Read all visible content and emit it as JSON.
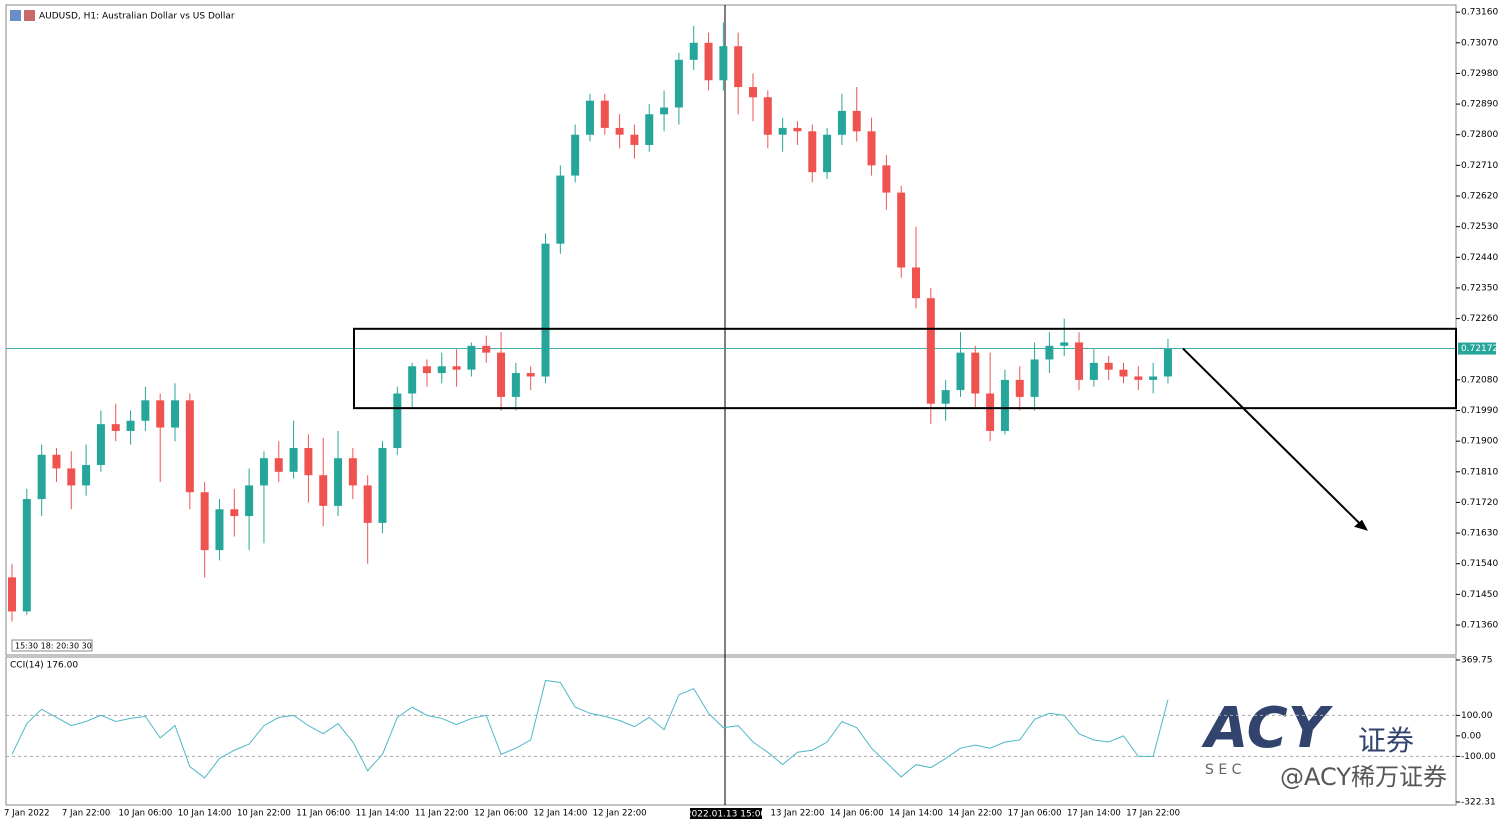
{
  "chart_data": {
    "type": "candlestick",
    "title": "AUDUSD, H1:  Australian Dollar vs US Dollar",
    "categories": [
      null,
      "7 Jan 2022",
      null,
      null,
      null,
      "7 Jan 22:00",
      null,
      null,
      null,
      "10 Jan 06:00",
      null,
      null,
      null,
      "10 Jan 14:00",
      null,
      null,
      null,
      "10 Jan 22:00",
      null,
      null,
      null,
      "11 Jan 06:00",
      null,
      null,
      null,
      "11 Jan 14:00",
      null,
      null,
      null,
      "11 Jan 22:00",
      null,
      null,
      null,
      "12 Jan 06:00",
      null,
      null,
      null,
      "12 Jan 14:00",
      null,
      null,
      null,
      "12 Jan 22:00",
      null,
      null,
      null,
      null,
      null,
      null,
      null,
      null,
      null,
      null,
      null,
      "13 Jan 22:00",
      null,
      null,
      null,
      "14 Jan 06:00",
      null,
      null,
      null,
      "14 Jan 14:00",
      null,
      null,
      null,
      "14 Jan 22:00",
      null,
      null,
      null,
      "17 Jan 06:00",
      null,
      null,
      null,
      "17 Jan 14:00",
      null,
      null,
      null,
      "17 Jan 22:00",
      null
    ],
    "open": [
      0.715,
      0.714,
      0.7173,
      0.7186,
      0.7182,
      0.7177,
      0.7183,
      0.7195,
      0.7193,
      0.7196,
      0.7202,
      0.7194,
      0.7202,
      0.7175,
      0.7158,
      0.717,
      0.7168,
      0.7177,
      0.7185,
      0.7181,
      0.7188,
      0.718,
      0.7171,
      0.7185,
      0.7177,
      0.7166,
      0.7188,
      0.7204,
      0.7212,
      0.721,
      0.7212,
      0.7211,
      0.7218,
      0.7216,
      0.7203,
      0.721,
      0.7209,
      0.7248,
      0.7268,
      0.728,
      0.729,
      0.7282,
      0.728,
      0.7277,
      0.7286,
      0.7288,
      0.7302,
      0.7307,
      0.7296,
      0.7306,
      0.7294,
      0.7291,
      0.728,
      0.7282,
      0.7281,
      0.7269,
      0.728,
      0.7287,
      0.7281,
      0.7271,
      0.7263,
      0.7241,
      0.7232,
      0.7201,
      0.7205,
      0.7216,
      0.7204,
      0.7193,
      0.7208,
      0.7203,
      0.7214,
      0.7218,
      0.7219,
      0.7208,
      0.7213,
      0.7211,
      0.7209,
      0.7208,
      0.7209
    ],
    "high": [
      0.7154,
      0.7176,
      0.7189,
      0.7188,
      0.7187,
      0.7189,
      0.7199,
      0.7201,
      0.7199,
      0.7206,
      0.7204,
      0.7207,
      0.7204,
      0.7178,
      0.7173,
      0.7176,
      0.7182,
      0.7187,
      0.719,
      0.7196,
      0.7192,
      0.7191,
      0.7193,
      0.7188,
      0.718,
      0.719,
      0.7206,
      0.7213,
      0.7214,
      0.7216,
      0.7217,
      0.7219,
      0.7221,
      0.7222,
      0.7213,
      0.7212,
      0.7251,
      0.7271,
      0.7283,
      0.7292,
      0.7292,
      0.7286,
      0.7283,
      0.7289,
      0.7293,
      0.7304,
      0.7312,
      0.731,
      0.7313,
      0.731,
      0.7298,
      0.7293,
      0.7285,
      0.7284,
      0.7283,
      0.7282,
      0.7292,
      0.7294,
      0.7285,
      0.7274,
      0.7265,
      0.7253,
      0.7235,
      0.7208,
      0.7222,
      0.7218,
      0.7216,
      0.7211,
      0.7212,
      0.7219,
      0.7222,
      0.7226,
      0.7222,
      0.7217,
      0.7215,
      0.7213,
      0.7212,
      0.7213,
      0.722
    ],
    "low": [
      0.7137,
      0.7139,
      0.7168,
      0.7178,
      0.717,
      0.7174,
      0.7181,
      0.719,
      0.7189,
      0.7193,
      0.7178,
      0.719,
      0.717,
      0.715,
      0.7155,
      0.7162,
      0.7158,
      0.716,
      0.7178,
      0.7179,
      0.7172,
      0.7165,
      0.7168,
      0.7173,
      0.7154,
      0.7163,
      0.7186,
      0.72,
      0.7206,
      0.7207,
      0.7206,
      0.7209,
      0.7213,
      0.7199,
      0.7199,
      0.7205,
      0.7207,
      0.7245,
      0.7266,
      0.7278,
      0.728,
      0.7276,
      0.7273,
      0.7275,
      0.7281,
      0.7283,
      0.7299,
      0.7293,
      0.7293,
      0.7286,
      0.7284,
      0.7276,
      0.7275,
      0.7277,
      0.7266,
      0.7267,
      0.7277,
      0.7278,
      0.7268,
      0.7258,
      0.7238,
      0.7229,
      0.7195,
      0.7196,
      0.7203,
      0.72,
      0.719,
      0.7192,
      0.7199,
      0.7199,
      0.721,
      0.7215,
      0.7205,
      0.7206,
      0.7208,
      0.7207,
      0.7205,
      0.7204,
      0.7207
    ],
    "close": [
      0.714,
      0.7173,
      0.7186,
      0.7182,
      0.7177,
      0.7183,
      0.7195,
      0.7193,
      0.7196,
      0.7202,
      0.7194,
      0.7202,
      0.7175,
      0.7158,
      0.717,
      0.7168,
      0.7177,
      0.7185,
      0.7181,
      0.7188,
      0.718,
      0.7171,
      0.7185,
      0.7177,
      0.7166,
      0.7188,
      0.7204,
      0.7212,
      0.721,
      0.7212,
      0.7211,
      0.7218,
      0.7216,
      0.7203,
      0.721,
      0.7209,
      0.7248,
      0.7268,
      0.728,
      0.729,
      0.7282,
      0.728,
      0.7277,
      0.7286,
      0.7288,
      0.7302,
      0.7307,
      0.7296,
      0.7306,
      0.7294,
      0.7291,
      0.728,
      0.7282,
      0.7281,
      0.7269,
      0.728,
      0.7287,
      0.7281,
      0.7271,
      0.7263,
      0.7241,
      0.7232,
      0.7201,
      0.7205,
      0.7216,
      0.7204,
      0.7193,
      0.7208,
      0.7203,
      0.7214,
      0.7218,
      0.7219,
      0.7208,
      0.7213,
      0.7211,
      0.7209,
      0.7208,
      0.7209,
      0.72172
    ],
    "up_color": "#26a69a",
    "down_color": "#ef5350",
    "ylim": [
      0.71272,
      0.73181
    ],
    "yticks": [
      {
        "value": 0.7316,
        "label": "0.73160"
      },
      {
        "value": 0.7307,
        "label": "0.73070"
      },
      {
        "value": 0.7298,
        "label": "0.72980"
      },
      {
        "value": 0.7289,
        "label": "0.72890"
      },
      {
        "value": 0.728,
        "label": "0.72800"
      },
      {
        "value": 0.7271,
        "label": "0.72710"
      },
      {
        "value": 0.7262,
        "label": "0.72620"
      },
      {
        "value": 0.7253,
        "label": "0.72530"
      },
      {
        "value": 0.7244,
        "label": "0.72440"
      },
      {
        "value": 0.7235,
        "label": "0.72350"
      },
      {
        "value": 0.7226,
        "label": "0.72260"
      },
      {
        "value": 0.7208,
        "label": "0.72080"
      },
      {
        "value": 0.7199,
        "label": "0.71990"
      },
      {
        "value": 0.719,
        "label": "0.71900"
      },
      {
        "value": 0.7181,
        "label": "0.71810"
      },
      {
        "value": 0.7172,
        "label": "0.71720"
      },
      {
        "value": 0.7163,
        "label": "0.71630"
      },
      {
        "value": 0.7154,
        "label": "0.71540"
      },
      {
        "value": 0.7145,
        "label": "0.71450"
      },
      {
        "value": 0.7136,
        "label": "0.71360"
      }
    ],
    "current_price": 0.72172,
    "range_box": [
      0.7223,
      0.71997
    ],
    "arrow_target": 0.7164,
    "crosshair_label": "2022.01.13 15:00",
    "overlay_time_labels": "15:30 18: 20:30 30",
    "indicator": {
      "label": "CCI(14) 176.00",
      "color": "#4fb8c6",
      "values": [
        -90,
        60,
        130,
        90,
        50,
        70,
        100,
        70,
        85,
        95,
        -10,
        50,
        -150,
        -205,
        -110,
        -70,
        -40,
        50,
        90,
        100,
        50,
        10,
        60,
        -30,
        -170,
        -90,
        90,
        140,
        100,
        85,
        55,
        85,
        100,
        -90,
        -60,
        -20,
        270,
        260,
        140,
        110,
        95,
        75,
        45,
        90,
        30,
        200,
        230,
        110,
        40,
        50,
        -30,
        -80,
        -140,
        -80,
        -70,
        -30,
        70,
        40,
        -60,
        -130,
        -200,
        -140,
        -155,
        -110,
        -60,
        -45,
        -60,
        -30,
        -20,
        80,
        110,
        100,
        10,
        -20,
        -30,
        0,
        -100,
        -100,
        176
      ],
      "y2lim": [
        -322.31,
        369.75
      ],
      "y2ticks": [
        {
          "value": 369.75,
          "label": "369.75"
        },
        {
          "value": 100,
          "label": "100.00"
        },
        {
          "value": 0,
          "label": "0.00"
        },
        {
          "value": -100,
          "label": "-100.00"
        },
        {
          "value": -322.31,
          "label": "-322.31"
        }
      ]
    },
    "watermark": {
      "logo": "ACY",
      "tag": "证券",
      "sub": "S E C",
      "handle": "@ACY稀万证券"
    }
  }
}
